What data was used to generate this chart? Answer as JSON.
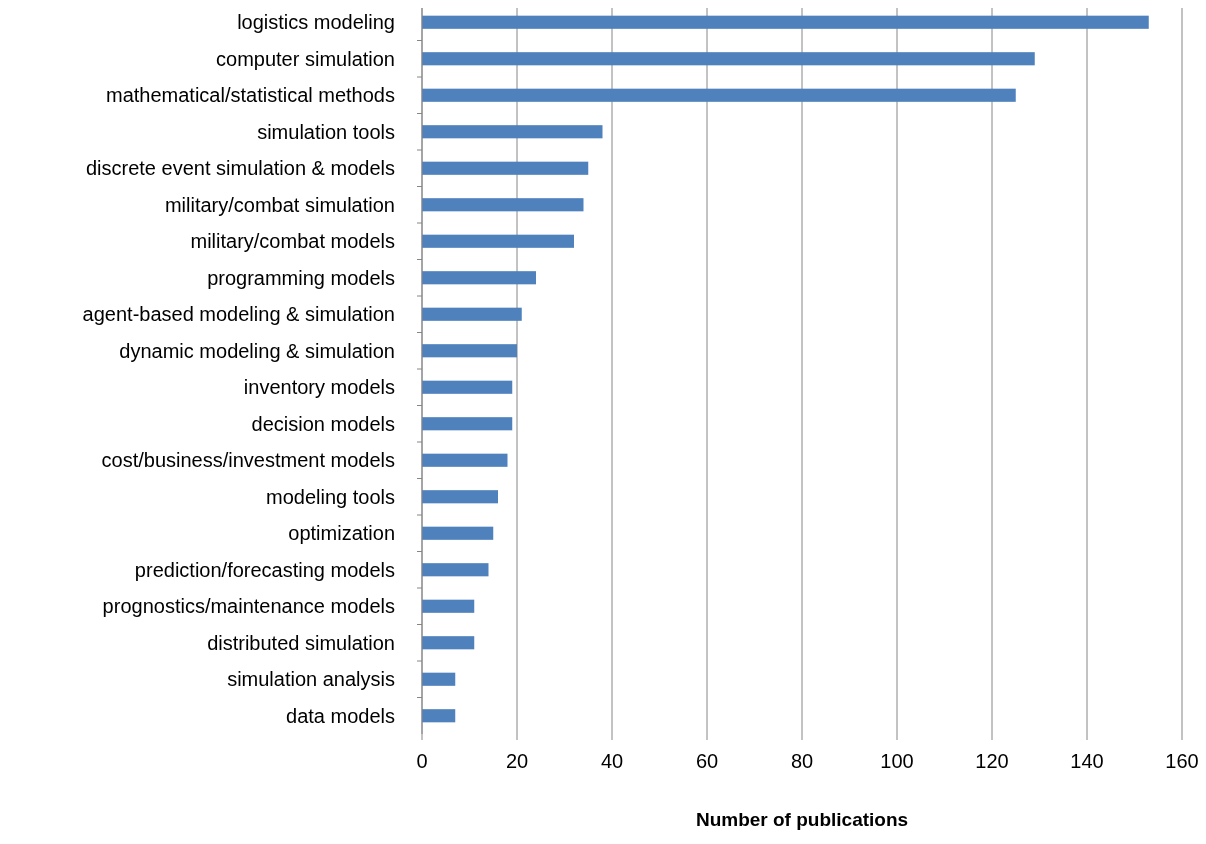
{
  "chart_data": {
    "type": "bar",
    "orientation": "horizontal",
    "xlabel": "Number of publications",
    "categories": [
      "logistics modeling",
      "computer simulation",
      "mathematical/statistical methods",
      "simulation tools",
      "discrete event simulation & models",
      "military/combat simulation",
      "military/combat models",
      "programming models",
      "agent-based modeling & simulation",
      "dynamic modeling & simulation",
      "inventory models",
      "decision models",
      "cost/business/investment models",
      "modeling tools",
      "optimization",
      "prediction/forecasting models",
      "prognostics/maintenance models",
      "distributed simulation",
      "simulation analysis",
      "data models"
    ],
    "values": [
      153,
      129,
      125,
      38,
      35,
      34,
      32,
      24,
      21,
      20,
      19,
      19,
      18,
      16,
      15,
      14,
      11,
      11,
      7,
      7
    ],
    "color": "#4f81bd",
    "xlim": [
      0,
      160
    ],
    "xticks": [
      0,
      20,
      40,
      60,
      80,
      100,
      120,
      140,
      160
    ],
    "grid": "x"
  }
}
